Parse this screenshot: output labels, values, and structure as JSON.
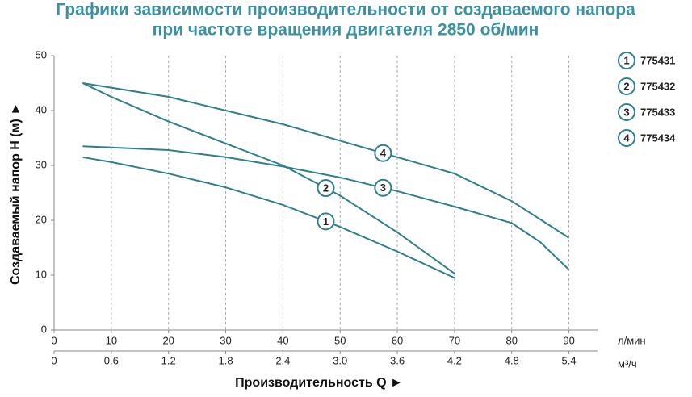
{
  "chart_data": {
    "type": "line",
    "title": [
      "Графики зависимости производительности от создаваемого напора",
      "при частоте вращения двигателя 2850 об/мин"
    ],
    "x_label": "Производительность Q ►",
    "y_label": "Создаваемый напор H (м) ►",
    "x_unit": "л/мин",
    "x2_unit": "м³/ч",
    "xlim": [
      0,
      95
    ],
    "xticks": [
      0,
      10,
      20,
      30,
      40,
      50,
      60,
      70,
      80,
      90
    ],
    "x2lim": [
      0,
      5.7
    ],
    "x2ticks": [
      0,
      0.6,
      1.2,
      1.8,
      2.4,
      {
        "value": 3,
        "label": "3.0"
      },
      3.6,
      4.2,
      4.8,
      5.4
    ],
    "ylim": [
      0,
      50
    ],
    "yticks": [
      0,
      10,
      20,
      30,
      40,
      50
    ],
    "grid": true,
    "series": [
      {
        "name": "775431",
        "marker": "1",
        "color": "#2e7f8f",
        "label_x": 47.5,
        "x": [
          5,
          10,
          20,
          30,
          40,
          50,
          60,
          70
        ],
        "values": [
          31.5,
          30.6,
          28.5,
          26,
          22.8,
          18.8,
          14.3,
          9.5
        ]
      },
      {
        "name": "775432",
        "marker": "2",
        "color": "#2e7f8f",
        "label_x": 47.5,
        "x": [
          5,
          10,
          20,
          30,
          40,
          50,
          60,
          70
        ],
        "values": [
          45,
          42.5,
          38,
          34,
          30,
          24.5,
          17.8,
          10.3
        ]
      },
      {
        "name": "775433",
        "marker": "3",
        "color": "#2e7f8f",
        "label_x": 57.5,
        "x": [
          5,
          20,
          30,
          40,
          50,
          60,
          70,
          80,
          85,
          90
        ],
        "values": [
          33.5,
          32.8,
          31.5,
          29.8,
          27.8,
          25.3,
          22.5,
          19.5,
          16,
          11
        ]
      },
      {
        "name": "775434",
        "marker": "4",
        "color": "#2e7f8f",
        "label_x": 57.5,
        "x": [
          5,
          20,
          30,
          40,
          50,
          60,
          70,
          80,
          90
        ],
        "values": [
          45,
          42.5,
          40,
          37.5,
          34.5,
          31.5,
          28.5,
          23.5,
          16.8
        ]
      }
    ]
  }
}
